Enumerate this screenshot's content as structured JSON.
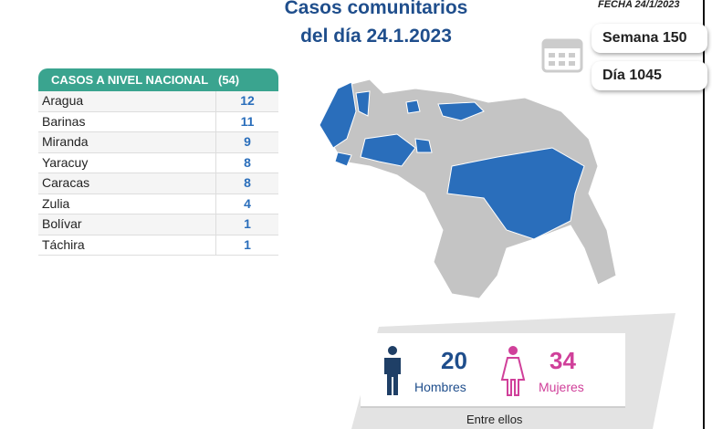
{
  "header": {
    "title_line1": "Casos comunitarios",
    "title_line2": "del día 24.1.2023",
    "date": "FECHA 24/1/2023",
    "week": "Semana 150",
    "day": "Día 1045"
  },
  "table": {
    "title": "CASOS A NIVEL NACIONAL",
    "total": "(54)",
    "rows": [
      [
        "Aragua",
        "12"
      ],
      [
        "Barinas",
        "11"
      ],
      [
        "Miranda",
        "9"
      ],
      [
        "Yaracuy",
        "8"
      ],
      [
        "Caracas",
        "8"
      ],
      [
        "Zulia",
        "4"
      ],
      [
        "Bolívar",
        "1"
      ],
      [
        "Táchira",
        "1"
      ]
    ]
  },
  "gender": {
    "men_count": "20",
    "men_label": "Hombres",
    "women_count": "34",
    "women_label": "Mujeres",
    "note": "Entre ellos"
  }
}
